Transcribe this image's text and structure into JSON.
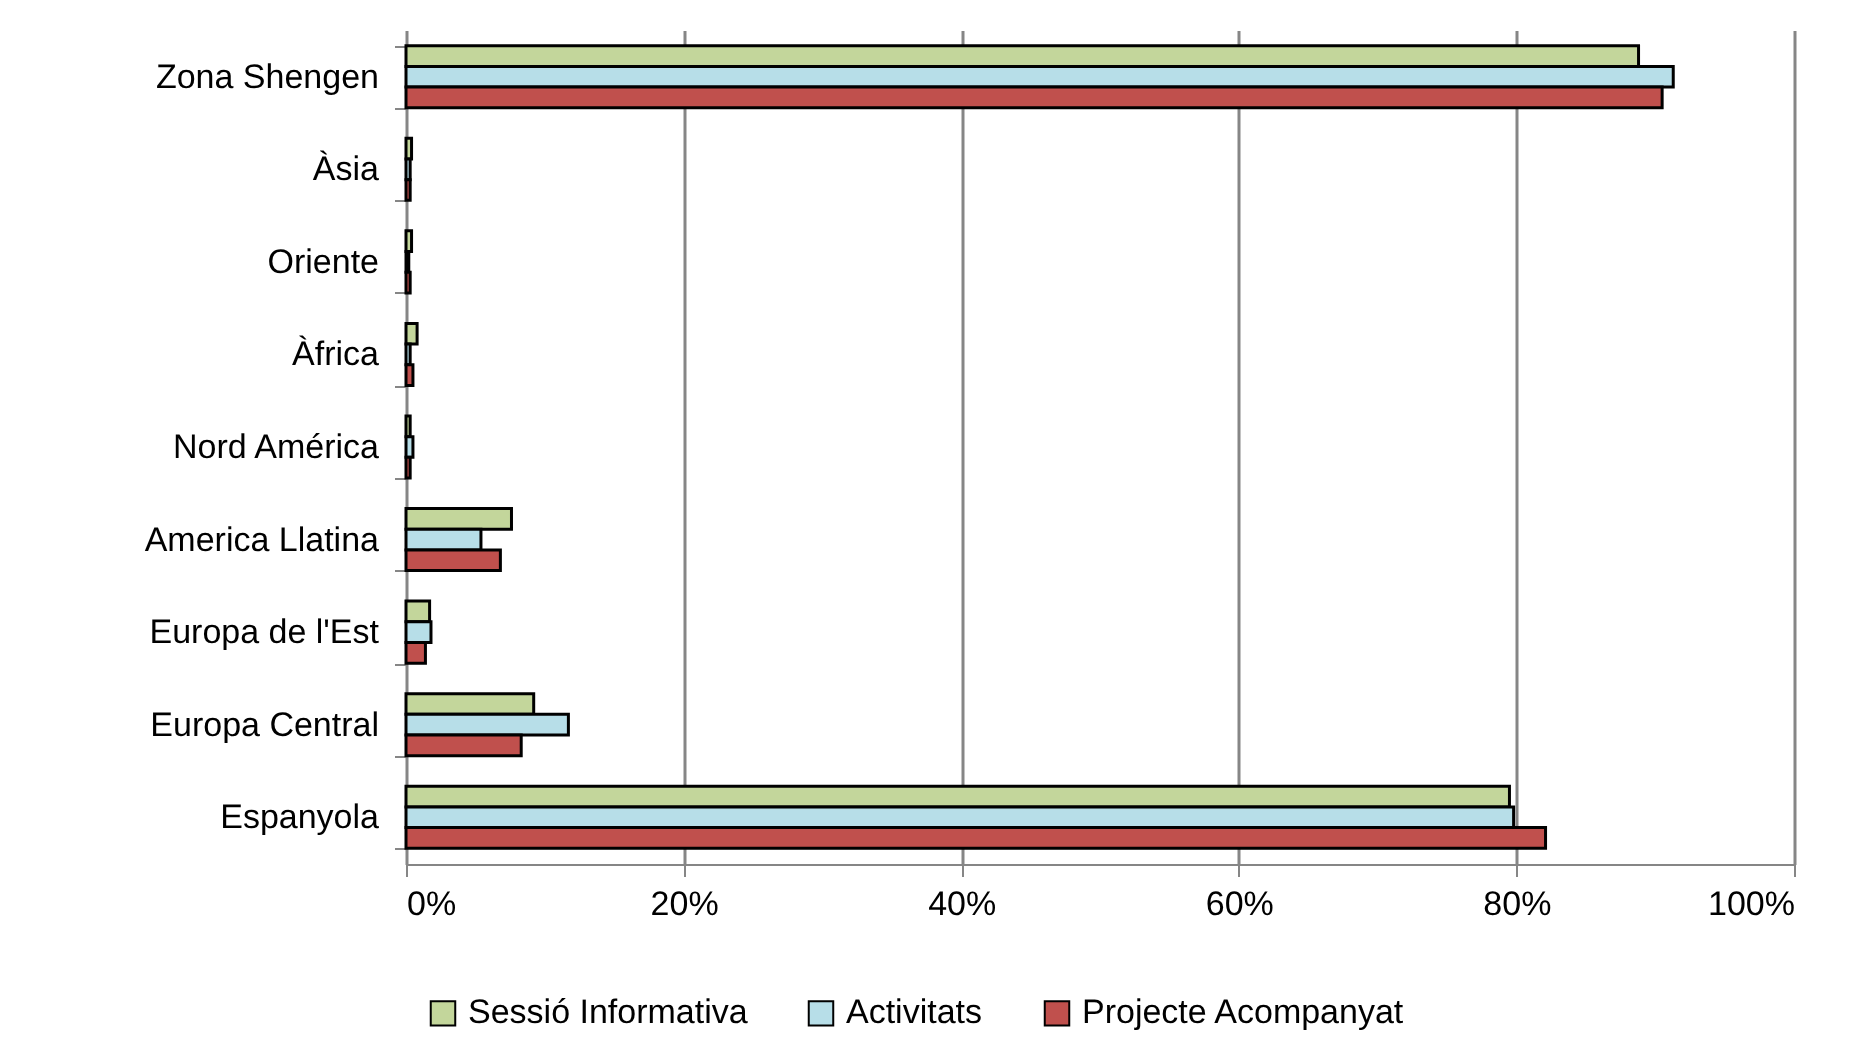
{
  "chart_data": {
    "type": "bar",
    "orientation": "horizontal",
    "categories": [
      "Zona Shengen",
      "Àsia",
      "Oriente",
      "Àfrica",
      "Nord América",
      "America Llatina",
      "Europa de l'Est",
      "Europa Central",
      "Espanyola"
    ],
    "series": [
      {
        "name": "Sessió Informativa",
        "color": "#c3d69b",
        "values": [
          88.8,
          0.4,
          0.4,
          0.8,
          0.3,
          7.6,
          1.7,
          9.2,
          79.5
        ]
      },
      {
        "name": "Activitats",
        "color": "#b7dee8",
        "values": [
          91.3,
          0.3,
          0.2,
          0.3,
          0.5,
          5.4,
          1.8,
          11.7,
          79.8
        ]
      },
      {
        "name": "Projecte Acompanyat",
        "color": "#c0504d",
        "values": [
          90.5,
          0.3,
          0.3,
          0.5,
          0.3,
          6.8,
          1.4,
          8.3,
          82.1
        ]
      }
    ],
    "xlim": [
      0,
      100
    ],
    "xticks": [
      {
        "value": 0,
        "label": "0%"
      },
      {
        "value": 20,
        "label": "20%"
      },
      {
        "value": 40,
        "label": "40%"
      },
      {
        "value": 60,
        "label": "60%"
      },
      {
        "value": 80,
        "label": "80%"
      },
      {
        "value": 100,
        "label": "100%"
      }
    ],
    "grid": "x",
    "legend": "bottom"
  }
}
